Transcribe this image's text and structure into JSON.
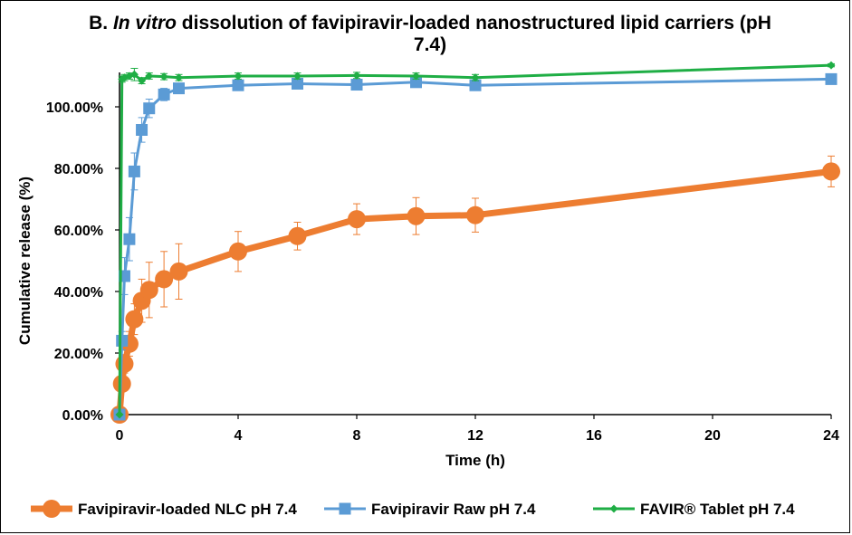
{
  "chart_data": {
    "type": "line",
    "title_prefix": "B. ",
    "title_italic": "In vitro",
    "title_rest": " dissolution of favipiravir-loaded nanostructured lipid carriers (pH 7.4)",
    "xlabel": "Time (h)",
    "ylabel": "Cumulative release (%)",
    "xlim": [
      0,
      24
    ],
    "ylim": [
      0,
      1.1
    ],
    "xticks": [
      0,
      4,
      8,
      12,
      16,
      20,
      24
    ],
    "xtick_labels": [
      "0",
      "4",
      "8",
      "12",
      "16",
      "20",
      "24"
    ],
    "yticks": [
      0,
      0.2,
      0.4,
      0.6,
      0.8,
      1.0
    ],
    "ytick_labels": [
      "0.00%",
      "20.00%",
      "40.00%",
      "60.00%",
      "80.00%",
      "100.00%"
    ],
    "grid": false,
    "legend_position": "bottom",
    "series": [
      {
        "name": "Favipiravir-loaded NLC pH 7.4",
        "color": "#ED7D31",
        "marker": "circle",
        "x": [
          0,
          0.083,
          0.167,
          0.333,
          0.5,
          0.75,
          1,
          1.5,
          2,
          4,
          6,
          8,
          10,
          12,
          24
        ],
        "y": [
          0,
          0.1,
          0.165,
          0.23,
          0.31,
          0.37,
          0.405,
          0.44,
          0.465,
          0.53,
          0.58,
          0.635,
          0.645,
          0.648,
          0.79
        ],
        "err": [
          0,
          0.02,
          0.03,
          0.04,
          0.05,
          0.07,
          0.09,
          0.09,
          0.09,
          0.065,
          0.045,
          0.05,
          0.06,
          0.055,
          0.05
        ]
      },
      {
        "name": "Favipiravir Raw pH 7.4",
        "color": "#5B9BD5",
        "marker": "square",
        "x": [
          0,
          0.083,
          0.167,
          0.333,
          0.5,
          0.75,
          1,
          1.5,
          2,
          4,
          6,
          8,
          10,
          12,
          24
        ],
        "y": [
          0,
          0.24,
          0.45,
          0.57,
          0.79,
          0.925,
          0.995,
          1.04,
          1.06,
          1.07,
          1.075,
          1.072,
          1.08,
          1.07,
          1.09
        ],
        "err": [
          0,
          0.03,
          0.06,
          0.07,
          0.06,
          0.04,
          0.03,
          0.02,
          0.015,
          0.01,
          0.01,
          0.01,
          0.015,
          0.01,
          0.01
        ]
      },
      {
        "name": "FAVIR® Tablet pH 7.4",
        "color": "#1FAE45",
        "marker": "diamond",
        "x": [
          0,
          0.083,
          0.167,
          0.333,
          0.5,
          0.75,
          1,
          1.5,
          2,
          4,
          6,
          8,
          10,
          12,
          24
        ],
        "y": [
          0,
          1.09,
          1.095,
          1.1,
          1.105,
          1.085,
          1.1,
          1.098,
          1.095,
          1.1,
          1.1,
          1.102,
          1.1,
          1.095,
          1.135
        ],
        "err": [
          0,
          0.01,
          0.01,
          0.01,
          0.02,
          0.01,
          0.01,
          0.01,
          0.01,
          0.01,
          0.01,
          0.01,
          0.01,
          0.01,
          0.005
        ]
      }
    ]
  }
}
